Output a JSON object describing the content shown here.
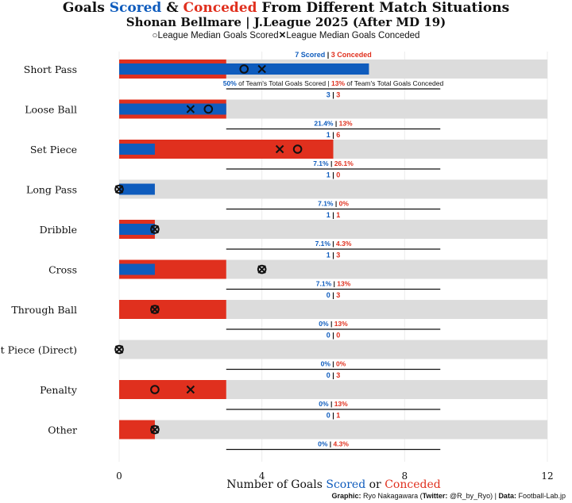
{
  "title": {
    "prefix": "Goals ",
    "scored_word": "Scored",
    "amp": " & ",
    "conceded_word": "Conceded",
    "suffix": " From Different Match Situations"
  },
  "subtitle": "Shonan Bellmare | J.League 2025 (After MD 19)",
  "legend": {
    "scored_label": "League Median Goals Scored",
    "conceded_label": "League Median Goals Conceded"
  },
  "xlabel": {
    "prefix": "Number of Goals ",
    "scored_word": "Scored",
    "or": " or ",
    "conceded_word": "Conceded"
  },
  "credit": {
    "graphic_label": "Graphic:",
    "graphic_value": " Ryo Nakagawara (",
    "twitter_label": "Twitter:",
    "twitter_value": " @R_by_Ryo) | ",
    "data_label": "Data:",
    "data_value": " Football-Lab.jp"
  },
  "colors": {
    "scored": "#0f5cbd",
    "conceded": "#e0301e",
    "track": "#dcdcdc"
  },
  "chart_data": {
    "type": "bar",
    "orientation": "horizontal",
    "xlim": [
      0,
      12
    ],
    "xticks": [
      0,
      4,
      8,
      12
    ],
    "categories": [
      "Short Pass",
      "Loose Ball",
      "Set Piece",
      "Long Pass",
      "Dribble",
      "Cross",
      "Through Ball",
      "Set Piece (Direct)",
      "Penalty",
      "Other"
    ],
    "series": [
      {
        "name": "Scored",
        "values": [
          7,
          3,
          1,
          1,
          1,
          1,
          0,
          0,
          0,
          0
        ]
      },
      {
        "name": "Conceded",
        "values": [
          3,
          3,
          6,
          0,
          1,
          3,
          3,
          0,
          3,
          1
        ]
      }
    ],
    "league_median_scored": [
      3.5,
      2.5,
      5,
      0,
      1,
      4,
      1,
      0,
      1,
      1
    ],
    "league_median_conceded": [
      4,
      2,
      4.5,
      0,
      1,
      4,
      1,
      0,
      2,
      1
    ],
    "scored_pct": [
      "50%",
      "21.4%",
      "7.1%",
      "7.1%",
      "7.1%",
      "7.1%",
      "0%",
      "0%",
      "0%",
      "0%"
    ],
    "conceded_pct": [
      "13%",
      "13%",
      "26.1%",
      "0%",
      "4.3%",
      "13%",
      "13%",
      "0%",
      "13%",
      "4.3%"
    ],
    "first_row_count_labels": {
      "scored": "Scored",
      "conceded": "Conceded"
    },
    "first_row_pct_labels": {
      "scored": "of Team's Total Goals Scored",
      "conceded": "of Team's Total Goals Conceded"
    },
    "grid": true
  }
}
